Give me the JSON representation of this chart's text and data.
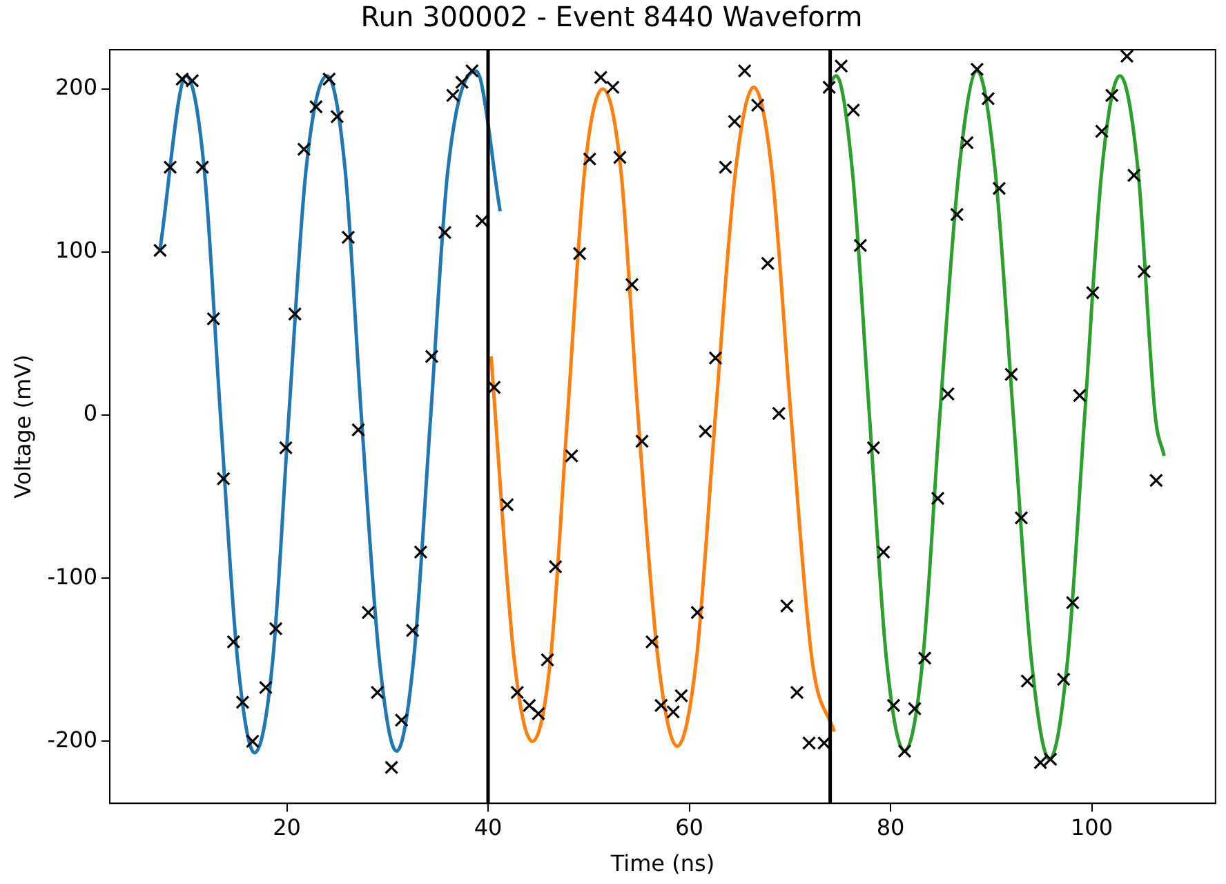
{
  "chart_data": {
    "type": "line",
    "title": "Run 300002 - Event 8440 Waveform",
    "xlabel": "Time (ns)",
    "ylabel": "Voltage (mV)",
    "xlim": [
      2.4,
      112.3
    ],
    "xticks": [
      20,
      40,
      60,
      80,
      100
    ],
    "ylim": [
      -238,
      224
    ],
    "yticks": [
      -200,
      -100,
      0,
      100,
      200
    ],
    "grid": false,
    "legend": false,
    "ref_lines": [
      {
        "axis": "x",
        "value": 40,
        "color": "#000000"
      },
      {
        "axis": "x",
        "value": 74,
        "color": "#000000"
      }
    ],
    "series": [
      {
        "color": "#1f77b4",
        "marker": "none",
        "x": [
          7.4,
          10.0,
          11.8,
          13.4,
          15.1,
          16.8,
          18.6,
          20.2,
          21.9,
          24.0,
          25.8,
          27.4,
          29.2,
          30.9,
          32.6,
          34.3,
          36.0,
          38.8,
          41.2
        ],
        "values": [
          102,
          208,
          150,
          0,
          -150,
          -207,
          -150,
          0,
          150,
          208,
          150,
          0,
          -150,
          -206,
          -150,
          0,
          150,
          211,
          125
        ]
      },
      {
        "color": "#ff7f0e",
        "marker": "none",
        "x": [
          40.3,
          42.6,
          44.4,
          46.2,
          47.9,
          49.6,
          51.4,
          53.2,
          54.9,
          56.9,
          58.8,
          60.7,
          62.6,
          64.6,
          66.4,
          68.2,
          70.1,
          72.2,
          74.4
        ],
        "values": [
          36,
          -150,
          -200,
          -150,
          0,
          150,
          200,
          150,
          0,
          -150,
          -203,
          -150,
          0,
          150,
          201,
          150,
          0,
          -150,
          -194
        ]
      },
      {
        "color": "#2ca02c",
        "marker": "none",
        "x": [
          73.9,
          74.6,
          76.2,
          77.9,
          79.6,
          81.4,
          83.2,
          84.9,
          86.8,
          88.6,
          90.4,
          92.2,
          94.0,
          95.8,
          97.6,
          99.3,
          101.0,
          102.8,
          104.6,
          106.3,
          107.2
        ],
        "values": [
          203,
          208,
          150,
          0,
          -150,
          -206,
          -150,
          0,
          150,
          211,
          150,
          0,
          -150,
          -211,
          -150,
          0,
          150,
          208,
          150,
          0,
          -25
        ]
      },
      {
        "type": "scatter",
        "color": "#000000",
        "marker": "cross",
        "x": [
          7.4,
          8.4,
          9.6,
          10.6,
          11.6,
          12.7,
          13.7,
          14.7,
          15.6,
          16.6,
          17.9,
          18.9,
          19.9,
          20.8,
          21.7,
          22.9,
          24.2,
          25.0,
          26.1,
          27.1,
          28.1,
          29.0,
          30.4,
          31.4,
          32.5,
          33.3,
          34.4,
          35.7,
          36.5,
          37.4,
          38.4,
          39.4,
          40.6,
          41.9,
          42.9,
          44.1,
          45.0,
          45.9,
          46.7,
          48.3,
          49.1,
          50.1,
          51.2,
          52.4,
          53.1,
          54.3,
          55.3,
          56.3,
          57.2,
          58.4,
          59.2,
          60.8,
          61.6,
          62.6,
          63.6,
          64.5,
          65.5,
          66.8,
          67.8,
          68.9,
          69.7,
          70.7,
          71.9,
          73.4,
          73.9,
          75.1,
          76.3,
          77.0,
          78.3,
          79.3,
          80.3,
          81.4,
          82.4,
          83.4,
          84.7,
          85.7,
          86.6,
          87.6,
          88.6,
          89.7,
          90.8,
          92.0,
          93.0,
          93.6,
          94.9,
          95.9,
          97.2,
          98.1,
          98.8,
          100.1,
          101.0,
          102.0,
          103.5,
          104.2,
          105.2,
          106.4
        ],
        "values": [
          101,
          152,
          206,
          205,
          152,
          59,
          -39,
          -139,
          -176,
          -200,
          -167,
          -131,
          -20,
          62,
          163,
          189,
          206,
          183,
          109,
          -9,
          -121,
          -170,
          -216,
          -187,
          -132,
          -84,
          36,
          112,
          196,
          204,
          211,
          119,
          17,
          -55,
          -170,
          -178,
          -183,
          -150,
          -93,
          -25,
          99,
          157,
          207,
          201,
          158,
          80,
          -16,
          -139,
          -178,
          -182,
          -172,
          -121,
          -10,
          35,
          152,
          180,
          211,
          190,
          93,
          1,
          -117,
          -170,
          -201,
          -201,
          201,
          214,
          187,
          104,
          -20,
          -84,
          -178,
          -206,
          -180,
          -149,
          -51,
          13,
          123,
          167,
          212,
          194,
          139,
          25,
          -63,
          -163,
          -213,
          -211,
          -162,
          -115,
          12,
          75,
          174,
          196,
          220,
          147,
          88,
          -40
        ]
      }
    ]
  }
}
